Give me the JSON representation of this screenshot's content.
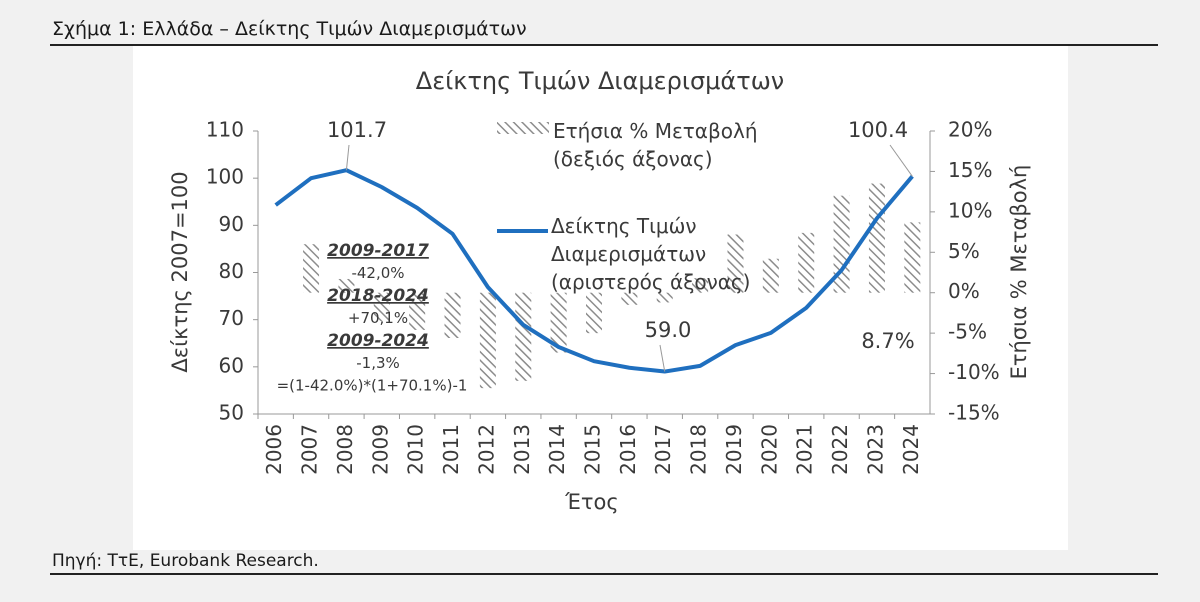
{
  "header": "Σχήμα 1: Ελλάδα – Δείκτης Τιμών Διαμερισμάτων",
  "source": "Πηγή: ΤτΕ, Eurobank Research.",
  "chart_data": {
    "type": "bar-line",
    "title": "Δείκτης Τιμών Διαμερισμάτων",
    "x_label": "Έτος",
    "y_label": "Δείκτης 2007=100",
    "y2_label": "Ετήσια % Μεταβολή",
    "categories": [
      "2006",
      "2007",
      "2008",
      "2009",
      "2010",
      "2011",
      "2012",
      "2013",
      "2014",
      "2015",
      "2016",
      "2017",
      "2018",
      "2019",
      "2020",
      "2021",
      "2022",
      "2023",
      "2024"
    ],
    "series": [
      {
        "name": "Ετήσια % Μεταβολή (δεξιός άξονας)",
        "type": "bar",
        "axis": "y2",
        "color": "#8c8c8c",
        "values": [
          null,
          6.0,
          1.7,
          -3.5,
          -4.6,
          -5.6,
          -11.8,
          -10.9,
          -7.4,
          -5.0,
          -1.5,
          -1.2,
          1.8,
          7.2,
          4.2,
          7.4,
          12.0,
          13.5,
          8.7
        ],
        "value_labels": [
          null,
          null,
          null,
          null,
          null,
          null,
          null,
          null,
          null,
          null,
          null,
          null,
          null,
          null,
          null,
          null,
          null,
          null,
          "8.7%"
        ]
      },
      {
        "name": "Δείκτης Τιμών Διαμερισμάτων (αριστερός άξονας)",
        "type": "line",
        "color": "#1f6fbf",
        "values": [
          94.3,
          100.0,
          101.7,
          98.1,
          93.7,
          88.2,
          76.9,
          68.9,
          64.2,
          61.2,
          59.8,
          59.0,
          60.2,
          64.6,
          67.2,
          72.5,
          80.5,
          91.5,
          100.4
        ],
        "value_labels": [
          null,
          null,
          "101.7",
          null,
          null,
          null,
          null,
          null,
          null,
          null,
          null,
          "59.0",
          null,
          null,
          null,
          null,
          null,
          null,
          "100.4"
        ]
      }
    ],
    "ylim": [
      50,
      110
    ],
    "yticks": [
      50,
      60,
      70,
      80,
      90,
      100,
      110
    ],
    "y2lim": [
      -15,
      20
    ],
    "y2ticks": [
      {
        "value": -15,
        "label": "-15%"
      },
      {
        "value": -10,
        "label": "-10%"
      },
      {
        "value": -5,
        "label": "-5%"
      },
      {
        "value": 0,
        "label": "0%"
      },
      {
        "value": 5,
        "label": "5%"
      },
      {
        "value": 10,
        "label": "10%"
      },
      {
        "value": 15,
        "label": "15%"
      },
      {
        "value": 20,
        "label": "20%"
      }
    ],
    "annotations": [
      "2009-2017",
      "-42,0%",
      "2018-2024",
      "+70,1%",
      "2009-2024",
      "-1,3%",
      "=(1-42.0%)*(1+70.1%)-1"
    ]
  }
}
